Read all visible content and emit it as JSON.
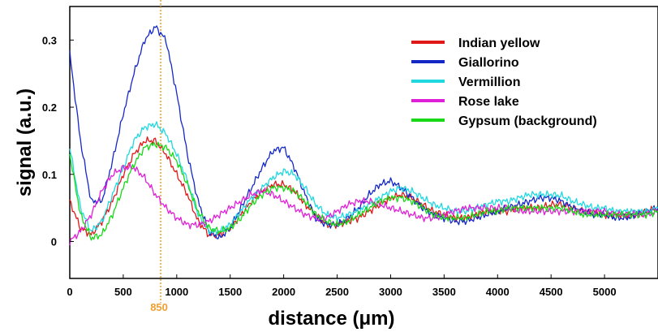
{
  "chart_data": {
    "type": "line",
    "xlabel": "distance (μm)",
    "ylabel": "signal (a.u.)",
    "xlim": [
      0,
      5500
    ],
    "ylim": [
      -0.055,
      0.35
    ],
    "x_ticks": [
      "0",
      "500",
      "1000",
      "1500",
      "2000",
      "2500",
      "3000",
      "3500",
      "4000",
      "4500",
      "5000"
    ],
    "y_ticks": [
      "0",
      "0.1",
      "0.2",
      "0.3"
    ],
    "grid": false,
    "legend_position": "top-right",
    "reference_line": {
      "x": 850,
      "label": "850",
      "color": "#f0a030"
    },
    "series": [
      {
        "name": "Indian yellow",
        "color": "#e01818",
        "x": [
          0,
          100,
          200,
          300,
          400,
          500,
          600,
          700,
          800,
          900,
          1000,
          1100,
          1200,
          1300,
          1400,
          1500,
          1600,
          1700,
          1800,
          1900,
          2000,
          2100,
          2200,
          2300,
          2400,
          2500,
          2600,
          2700,
          2800,
          2900,
          3000,
          3100,
          3200,
          3300,
          3400,
          3500,
          3600,
          3700,
          3800,
          3900,
          4000,
          4100,
          4200,
          4300,
          4400,
          4500,
          4600,
          4700,
          4800,
          4900,
          5000,
          5100,
          5200,
          5300,
          5400,
          5500
        ],
        "y": [
          0.06,
          0.02,
          0.01,
          0.03,
          0.06,
          0.1,
          0.13,
          0.15,
          0.15,
          0.13,
          0.1,
          0.07,
          0.03,
          0.01,
          0.01,
          0.02,
          0.04,
          0.06,
          0.075,
          0.085,
          0.085,
          0.075,
          0.055,
          0.04,
          0.025,
          0.025,
          0.03,
          0.035,
          0.045,
          0.055,
          0.065,
          0.07,
          0.065,
          0.055,
          0.045,
          0.04,
          0.035,
          0.035,
          0.04,
          0.045,
          0.045,
          0.045,
          0.05,
          0.05,
          0.05,
          0.055,
          0.055,
          0.05,
          0.045,
          0.045,
          0.04,
          0.04,
          0.04,
          0.04,
          0.045,
          0.05
        ]
      },
      {
        "name": "Giallorino",
        "color": "#1428c8",
        "x": [
          0,
          100,
          200,
          300,
          400,
          500,
          600,
          700,
          800,
          900,
          1000,
          1100,
          1200,
          1300,
          1400,
          1500,
          1600,
          1700,
          1800,
          1900,
          2000,
          2100,
          2200,
          2300,
          2400,
          2500,
          2600,
          2700,
          2800,
          2900,
          3000,
          3100,
          3200,
          3300,
          3400,
          3500,
          3600,
          3700,
          3800,
          3900,
          4000,
          4100,
          4200,
          4300,
          4400,
          4500,
          4600,
          4700,
          4800,
          4900,
          5000,
          5100,
          5200,
          5300,
          5400,
          5500
        ],
        "y": [
          0.28,
          0.15,
          0.06,
          0.06,
          0.12,
          0.19,
          0.25,
          0.3,
          0.32,
          0.3,
          0.22,
          0.13,
          0.06,
          0.015,
          0.005,
          0.02,
          0.05,
          0.08,
          0.11,
          0.135,
          0.14,
          0.11,
          0.07,
          0.035,
          0.025,
          0.025,
          0.035,
          0.05,
          0.07,
          0.085,
          0.09,
          0.08,
          0.065,
          0.05,
          0.04,
          0.035,
          0.03,
          0.03,
          0.035,
          0.04,
          0.045,
          0.05,
          0.055,
          0.06,
          0.065,
          0.065,
          0.06,
          0.05,
          0.045,
          0.04,
          0.04,
          0.035,
          0.035,
          0.04,
          0.045,
          0.05
        ]
      },
      {
        "name": "Vermillion",
        "color": "#20d8e0",
        "x": [
          0,
          100,
          200,
          300,
          400,
          500,
          600,
          700,
          800,
          900,
          1000,
          1100,
          1200,
          1300,
          1400,
          1500,
          1600,
          1700,
          1800,
          1900,
          2000,
          2100,
          2200,
          2300,
          2400,
          2500,
          2600,
          2700,
          2800,
          2900,
          3000,
          3100,
          3200,
          3300,
          3400,
          3500,
          3600,
          3700,
          3800,
          3900,
          4000,
          4100,
          4200,
          4300,
          4400,
          4500,
          4600,
          4700,
          4800,
          4900,
          5000,
          5100,
          5200,
          5300,
          5400,
          5500
        ],
        "y": [
          0.14,
          0.05,
          0.015,
          0.03,
          0.07,
          0.11,
          0.15,
          0.17,
          0.175,
          0.16,
          0.13,
          0.09,
          0.04,
          0.015,
          0.015,
          0.025,
          0.045,
          0.065,
          0.08,
          0.095,
          0.105,
          0.1,
          0.08,
          0.055,
          0.04,
          0.035,
          0.04,
          0.045,
          0.055,
          0.065,
          0.075,
          0.08,
          0.075,
          0.065,
          0.055,
          0.05,
          0.045,
          0.045,
          0.05,
          0.055,
          0.06,
          0.06,
          0.065,
          0.07,
          0.07,
          0.07,
          0.068,
          0.06,
          0.055,
          0.05,
          0.05,
          0.045,
          0.045,
          0.045,
          0.045,
          0.05
        ]
      },
      {
        "name": "Rose lake",
        "color": "#e020d8",
        "x": [
          0,
          100,
          200,
          300,
          400,
          500,
          600,
          700,
          800,
          900,
          1000,
          1100,
          1200,
          1300,
          1400,
          1500,
          1600,
          1700,
          1800,
          1900,
          2000,
          2100,
          2200,
          2300,
          2400,
          2500,
          2600,
          2700,
          2800,
          2900,
          3000,
          3100,
          3200,
          3300,
          3400,
          3500,
          3600,
          3700,
          3800,
          3900,
          4000,
          4100,
          4200,
          4300,
          4400,
          4500,
          4600,
          4700,
          4800,
          4900,
          5000,
          5100,
          5200,
          5300,
          5400,
          5500
        ],
        "y": [
          0.0,
          0.015,
          0.04,
          0.075,
          0.1,
          0.11,
          0.11,
          0.095,
          0.07,
          0.05,
          0.035,
          0.025,
          0.025,
          0.03,
          0.04,
          0.05,
          0.06,
          0.07,
          0.075,
          0.07,
          0.06,
          0.05,
          0.04,
          0.035,
          0.035,
          0.045,
          0.055,
          0.06,
          0.06,
          0.055,
          0.05,
          0.045,
          0.04,
          0.035,
          0.035,
          0.04,
          0.045,
          0.05,
          0.05,
          0.05,
          0.05,
          0.05,
          0.045,
          0.045,
          0.045,
          0.045,
          0.045,
          0.045,
          0.045,
          0.045,
          0.045,
          0.04,
          0.04,
          0.04,
          0.04,
          0.045
        ]
      },
      {
        "name": "Gypsum (background)",
        "color": "#18d818",
        "x": [
          0,
          100,
          200,
          300,
          400,
          500,
          600,
          700,
          800,
          900,
          1000,
          1100,
          1200,
          1300,
          1400,
          1500,
          1600,
          1700,
          1800,
          1900,
          2000,
          2100,
          2200,
          2300,
          2400,
          2500,
          2600,
          2700,
          2800,
          2900,
          3000,
          3100,
          3200,
          3300,
          3400,
          3500,
          3600,
          3700,
          3800,
          3900,
          4000,
          4100,
          4200,
          4300,
          4400,
          4500,
          4600,
          4700,
          4800,
          4900,
          5000,
          5100,
          5200,
          5300,
          5400,
          5500
        ],
        "y": [
          0.13,
          0.04,
          0.005,
          0.01,
          0.04,
          0.08,
          0.115,
          0.14,
          0.145,
          0.14,
          0.12,
          0.085,
          0.045,
          0.02,
          0.015,
          0.02,
          0.035,
          0.055,
          0.07,
          0.08,
          0.08,
          0.075,
          0.06,
          0.04,
          0.03,
          0.025,
          0.03,
          0.04,
          0.05,
          0.06,
          0.065,
          0.065,
          0.06,
          0.05,
          0.04,
          0.035,
          0.035,
          0.035,
          0.04,
          0.045,
          0.045,
          0.05,
          0.05,
          0.05,
          0.05,
          0.05,
          0.05,
          0.045,
          0.04,
          0.04,
          0.04,
          0.04,
          0.04,
          0.04,
          0.04,
          0.045
        ]
      }
    ]
  }
}
